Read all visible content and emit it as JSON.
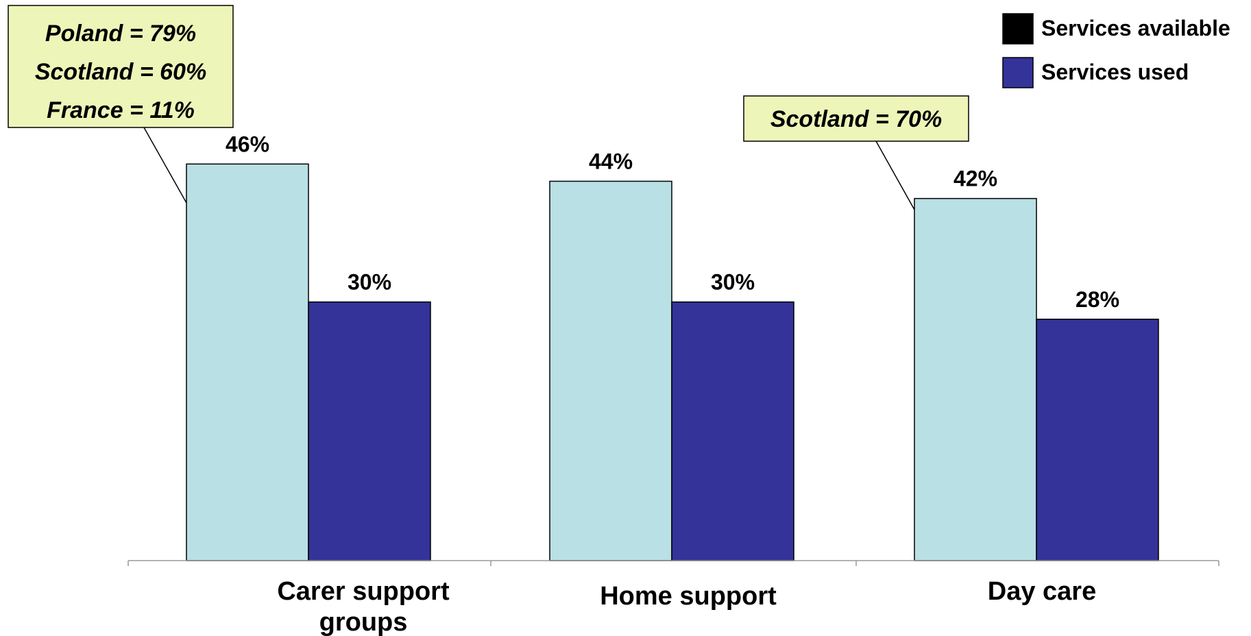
{
  "chart_data": {
    "type": "bar",
    "categories": [
      "Carer support groups",
      "Home support",
      "Day care"
    ],
    "series": [
      {
        "name": "Services available",
        "values": [
          46,
          44,
          42
        ],
        "color": "#b9e0e4",
        "legend_swatch_color": "#000000"
      },
      {
        "name": "Services used",
        "values": [
          30,
          30,
          28
        ],
        "color": "#333399",
        "legend_swatch_color": "#333399"
      }
    ],
    "data_labels": [
      [
        "46%",
        "44%",
        "42%"
      ],
      [
        "30%",
        "30%",
        "28%"
      ]
    ],
    "annotations": [
      {
        "category": "Carer support groups",
        "lines": [
          "Poland = 79%",
          "Scotland = 60%",
          "France = 11%"
        ]
      },
      {
        "category": "Day care",
        "lines": [
          "Scotland = 70%"
        ]
      }
    ],
    "annotation_fill": "#eef5b8",
    "legend_position": "top-right",
    "title": "",
    "xlabel": "",
    "ylabel": "",
    "ylim": [
      0,
      50
    ],
    "grid": false
  }
}
